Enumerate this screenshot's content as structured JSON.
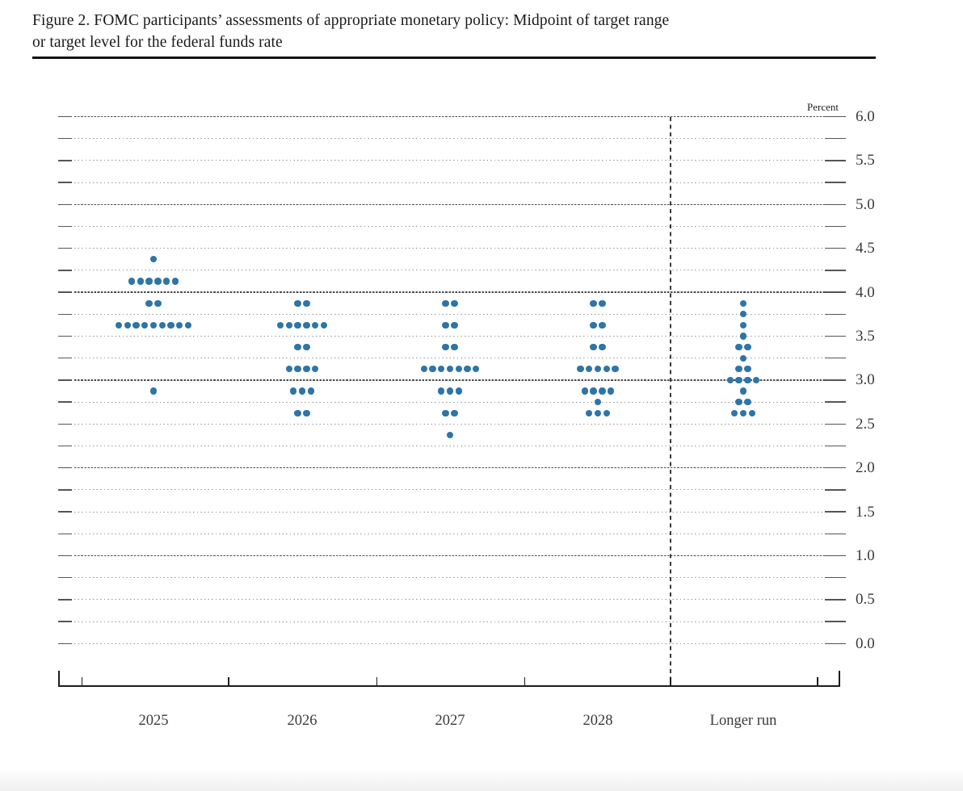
{
  "title": {
    "line1": "Figure 2. FOMC participants’ assessments of appropriate monetary policy: Midpoint of target range",
    "line2": "or target level for the federal funds rate"
  },
  "chart_data": {
    "type": "scatter",
    "subtype": "fomc-dot-plot",
    "unit_label": "Percent",
    "ylim": [
      0.0,
      6.0
    ],
    "grid_step": 0.25,
    "label_step": 0.5,
    "grid": "dotted, darker dashed lines at whole percents, legend none",
    "dot_color": "#2e74a8",
    "yticks": [
      {
        "value": 6.0,
        "label": "6.0"
      },
      {
        "value": 5.5,
        "label": "5.5"
      },
      {
        "value": 5.0,
        "label": "5.0"
      },
      {
        "value": 4.5,
        "label": "4.5"
      },
      {
        "value": 4.0,
        "label": "4.0"
      },
      {
        "value": 3.5,
        "label": "3.5"
      },
      {
        "value": 3.0,
        "label": "3.0"
      },
      {
        "value": 2.5,
        "label": "2.5"
      },
      {
        "value": 2.0,
        "label": "2.0"
      },
      {
        "value": 1.5,
        "label": "1.5"
      },
      {
        "value": 1.0,
        "label": "1.0"
      },
      {
        "value": 0.5,
        "label": "0.5"
      },
      {
        "value": 0.0,
        "label": "0.0"
      }
    ],
    "categories": [
      "2025",
      "2026",
      "2027",
      "2028",
      "Longer run"
    ],
    "separator_before_category": "Longer run",
    "series": [
      {
        "category": "2025",
        "dots": [
          {
            "rate": 4.375,
            "count": 1
          },
          {
            "rate": 4.125,
            "count": 6
          },
          {
            "rate": 3.875,
            "count": 2
          },
          {
            "rate": 3.625,
            "count": 9
          },
          {
            "rate": 2.875,
            "count": 1
          }
        ]
      },
      {
        "category": "2026",
        "dots": [
          {
            "rate": 3.875,
            "count": 2
          },
          {
            "rate": 3.625,
            "count": 6
          },
          {
            "rate": 3.375,
            "count": 2
          },
          {
            "rate": 3.125,
            "count": 4
          },
          {
            "rate": 2.875,
            "count": 3
          },
          {
            "rate": 2.625,
            "count": 2
          }
        ]
      },
      {
        "category": "2027",
        "dots": [
          {
            "rate": 3.875,
            "count": 2
          },
          {
            "rate": 3.625,
            "count": 2
          },
          {
            "rate": 3.375,
            "count": 2
          },
          {
            "rate": 3.125,
            "count": 7
          },
          {
            "rate": 2.875,
            "count": 3
          },
          {
            "rate": 2.625,
            "count": 2
          },
          {
            "rate": 2.375,
            "count": 1
          }
        ]
      },
      {
        "category": "2028",
        "dots": [
          {
            "rate": 3.875,
            "count": 2
          },
          {
            "rate": 3.625,
            "count": 2
          },
          {
            "rate": 3.375,
            "count": 2
          },
          {
            "rate": 3.125,
            "count": 5
          },
          {
            "rate": 2.875,
            "count": 4
          },
          {
            "rate": 2.75,
            "count": 1
          },
          {
            "rate": 2.625,
            "count": 3
          }
        ]
      },
      {
        "category": "Longer run",
        "dots": [
          {
            "rate": 3.875,
            "count": 1
          },
          {
            "rate": 3.75,
            "count": 1
          },
          {
            "rate": 3.625,
            "count": 1
          },
          {
            "rate": 3.5,
            "count": 1
          },
          {
            "rate": 3.375,
            "count": 2
          },
          {
            "rate": 3.25,
            "count": 1
          },
          {
            "rate": 3.125,
            "count": 2
          },
          {
            "rate": 3.0,
            "count": 4
          },
          {
            "rate": 2.875,
            "count": 1
          },
          {
            "rate": 2.75,
            "count": 2
          },
          {
            "rate": 2.625,
            "count": 3
          }
        ]
      }
    ]
  }
}
